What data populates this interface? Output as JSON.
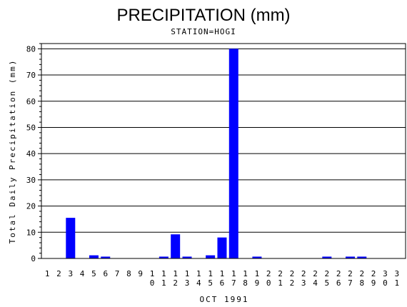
{
  "chart_data": {
    "type": "bar",
    "title": "PRECIPITATION (mm)",
    "subtitle": "STATION=HOGI",
    "xlabel": "OCT 1991",
    "ylabel": "Total Daily Precipitation (mm)",
    "ylim": [
      0,
      82
    ],
    "yticks": [
      0,
      10,
      20,
      30,
      40,
      50,
      60,
      70,
      80
    ],
    "grid": true,
    "bar_color": "#0000ff",
    "categories": [
      "1",
      "2",
      "3",
      "4",
      "5",
      "6",
      "7",
      "8",
      "9",
      "10",
      "11",
      "12",
      "13",
      "14",
      "15",
      "16",
      "17",
      "18",
      "19",
      "20",
      "21",
      "22",
      "23",
      "24",
      "25",
      "26",
      "27",
      "28",
      "29",
      "30",
      "31"
    ],
    "values": [
      0,
      0,
      15.5,
      0,
      1.2,
      0.7,
      0,
      0,
      0,
      0,
      0.7,
      9.2,
      0.7,
      0,
      1.2,
      8.0,
      80.0,
      0,
      0.7,
      0,
      0,
      0,
      0,
      0,
      0.7,
      0,
      0.7,
      0.7,
      0,
      0,
      0
    ]
  }
}
